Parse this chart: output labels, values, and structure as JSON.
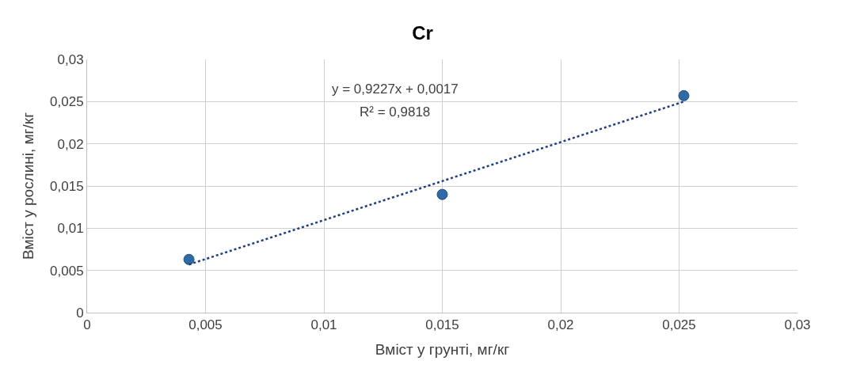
{
  "chart_data": {
    "type": "scatter",
    "title": "Cr",
    "xlabel": "Вміст у грунті, мг/кг",
    "ylabel": "Вміст у рослині, мг/кг",
    "xlim": [
      0,
      0.03
    ],
    "ylim": [
      0,
      0.03
    ],
    "xticks": [
      0,
      {
        "value": 0.005,
        "label": "0,005"
      },
      {
        "value": 0.01,
        "label": "0,01"
      },
      {
        "value": 0.015,
        "label": "0,015"
      },
      {
        "value": 0.02,
        "label": "0,02"
      },
      {
        "value": 0.025,
        "label": "0,025"
      },
      {
        "value": 0.03,
        "label": "0,03"
      }
    ],
    "yticks": [
      0,
      {
        "value": 0.005,
        "label": "0,005"
      },
      {
        "value": 0.01,
        "label": "0,01"
      },
      {
        "value": 0.015,
        "label": "0,015"
      },
      {
        "value": 0.02,
        "label": "0,02"
      },
      {
        "value": 0.025,
        "label": "0,025"
      },
      {
        "value": 0.03,
        "label": "0,03"
      }
    ],
    "grid": true,
    "marker": "circle",
    "series": [
      {
        "type": "scatter",
        "color": "#2e6aa6",
        "x": [
          0.0043,
          0.015,
          0.0252
        ],
        "values": [
          0.0063,
          0.014,
          0.0257
        ]
      },
      {
        "type": "line",
        "color": "#1f3f80",
        "line_style": "dotted",
        "marker": "none",
        "x": [
          0.0043,
          0.0252
        ],
        "values": [
          0.0057,
          0.025
        ]
      }
    ],
    "annotations": [
      "y = 0,9227x + 0,0017",
      "R² = 0,9818"
    ]
  }
}
